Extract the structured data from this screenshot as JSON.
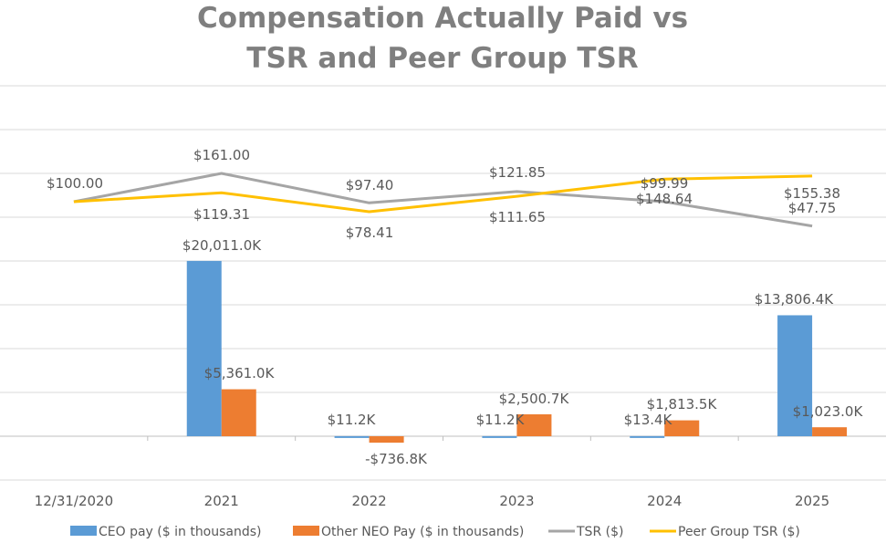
{
  "chart_data": {
    "type": "bar",
    "title_lines": [
      "Compensation Actually Paid vs",
      "TSR and Peer Group TSR"
    ],
    "categories": [
      "12/31/2020",
      "2021",
      "2022",
      "2023",
      "2024",
      "2025"
    ],
    "bar_ylim": [
      -1000,
      20000
    ],
    "line_ylim": [
      0,
      300
    ],
    "grid": true,
    "legend_position": "bottom",
    "series": [
      {
        "name": "CEO pay ($ in thousands)",
        "kind": "bar",
        "color": "#5b9bd5",
        "values": [
          null,
          20011.0,
          11.2,
          11.2,
          13.4,
          13806.4
        ],
        "labels": [
          "",
          "$20,011.0K",
          "$11.2K",
          "$11.2K",
          "$13.4K",
          "$13,806.4K"
        ]
      },
      {
        "name": "Other NEO Pay ($ in thousands)",
        "kind": "bar",
        "color": "#ed7d31",
        "values": [
          null,
          5361.0,
          -736.8,
          2500.7,
          1813.5,
          1023.0
        ],
        "labels": [
          "",
          "$5,361.0K",
          "-$736.8K",
          "$2,500.7K",
          "$1,813.5K",
          "$1,023.0K"
        ]
      },
      {
        "name": "TSR ($)",
        "kind": "line",
        "color": "#a5a5a5",
        "values": [
          100.0,
          161.0,
          97.4,
          121.85,
          99.99,
          47.75
        ],
        "labels": [
          "$100.00",
          "$161.00",
          "$97.40",
          "$121.85",
          "$99.99",
          "$47.75"
        ]
      },
      {
        "name": "Peer Group TSR ($)",
        "kind": "line",
        "color": "#ffc000",
        "values": [
          100.0,
          119.31,
          78.41,
          111.65,
          148.64,
          155.38
        ],
        "labels": [
          "",
          "$119.31",
          "$78.41",
          "$111.65",
          "$148.64",
          "$155.38"
        ]
      }
    ]
  }
}
